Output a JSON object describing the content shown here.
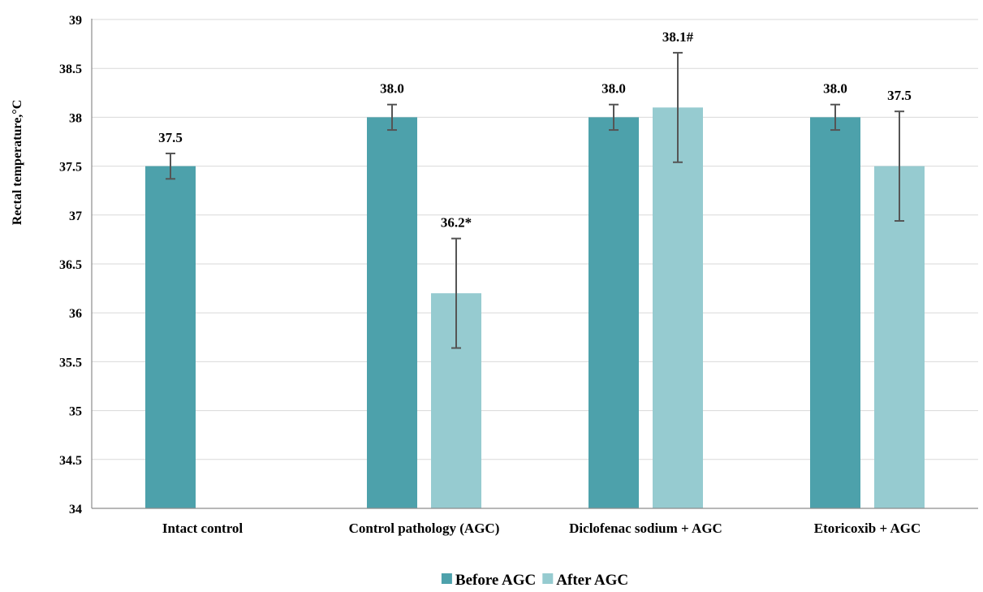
{
  "chart_data": {
    "type": "bar",
    "title": "",
    "xlabel": "",
    "ylabel": "Rectal temperature,°C",
    "ylim": [
      34,
      39
    ],
    "yticks": [
      34,
      34.5,
      35,
      35.5,
      36,
      36.5,
      37,
      37.5,
      38,
      38.5,
      39
    ],
    "ytick_labels": [
      "34",
      "34.5",
      "35",
      "35.5",
      "36",
      "36.5",
      "37",
      "37.5",
      "38",
      "38.5",
      "39"
    ],
    "grid": true,
    "legend": "bottom-center",
    "categories": [
      "Intact control",
      "Control pathology (AGC)",
      "Diclofenac sodium + AGC",
      "Etoricoxib + AGC"
    ],
    "series": [
      {
        "name": "Before AGC",
        "color": "#4da1ab",
        "values": [
          37.5,
          38.0,
          38.0,
          38.0
        ],
        "errors": [
          0.13,
          0.13,
          0.13,
          0.13
        ],
        "labels": [
          "37.5",
          "38.0",
          "38.0",
          "38.0"
        ]
      },
      {
        "name": "After AGC",
        "color": "#96cbd0",
        "values": [
          null,
          36.2,
          38.1,
          37.5
        ],
        "errors": [
          null,
          0.56,
          0.56,
          0.56
        ],
        "labels": [
          "",
          "36.2*",
          "38.1#",
          "37.5"
        ]
      }
    ],
    "error_bar_color": "#555555",
    "grid_color": "#d9d9d9"
  }
}
